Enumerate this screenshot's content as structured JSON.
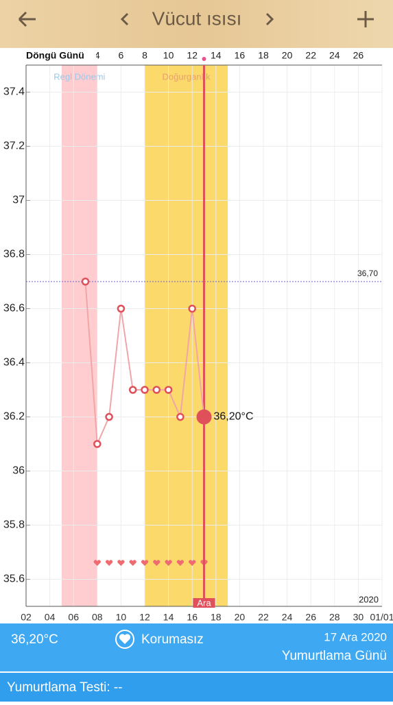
{
  "header": {
    "title": "Vücut ısısı"
  },
  "chart_data": {
    "type": "line",
    "cycle_axis_label": "Döngü Günü",
    "x2ticks": [
      {
        "value": 8,
        "label": "4"
      },
      {
        "value": 10,
        "label": "6"
      },
      {
        "value": 12,
        "label": "8"
      },
      {
        "value": 14,
        "label": "10"
      },
      {
        "value": 16,
        "label": "12"
      },
      {
        "value": 18,
        "label": "14"
      },
      {
        "value": 20,
        "label": "16"
      },
      {
        "value": 22,
        "label": "18"
      },
      {
        "value": 24,
        "label": "20"
      },
      {
        "value": 26,
        "label": "22"
      },
      {
        "value": 28,
        "label": "24"
      },
      {
        "value": 30,
        "label": "26"
      }
    ],
    "xlim": [
      2,
      32
    ],
    "xticks": [
      {
        "value": 2,
        "label": "02"
      },
      {
        "value": 4,
        "label": "04"
      },
      {
        "value": 6,
        "label": "06"
      },
      {
        "value": 8,
        "label": "08"
      },
      {
        "value": 10,
        "label": "10"
      },
      {
        "value": 12,
        "label": "12"
      },
      {
        "value": 14,
        "label": "14"
      },
      {
        "value": 16,
        "label": "16"
      },
      {
        "value": 18,
        "label": "18"
      },
      {
        "value": 20,
        "label": "20"
      },
      {
        "value": 22,
        "label": "22"
      },
      {
        "value": 24,
        "label": "24"
      },
      {
        "value": 26,
        "label": "26"
      },
      {
        "value": 28,
        "label": "28"
      },
      {
        "value": 30,
        "label": "30"
      },
      {
        "value": 32,
        "label": "01/01"
      }
    ],
    "ylim": [
      35.5,
      37.5
    ],
    "yticks": [
      35.6,
      35.8,
      36,
      36.2,
      36.4,
      36.6,
      36.8,
      37,
      37.2,
      37.4
    ],
    "grid": true,
    "year_label": "2020",
    "bands": [
      {
        "name": "Regl Dönemi",
        "start": 5,
        "end": 8,
        "color": "#ffcdd0",
        "text_color": "#9cc8e8"
      },
      {
        "name": "Doğurganlık",
        "start": 12,
        "end": 19,
        "color": "#fbd96a",
        "text_color": "#e8a070"
      }
    ],
    "series": [
      {
        "name": "Vücut ısısı",
        "color": "#f0a6a8",
        "x": [
          7,
          8,
          9,
          10,
          11,
          12,
          13,
          14,
          15,
          16,
          17
        ],
        "values": [
          36.7,
          36.1,
          36.2,
          36.6,
          36.3,
          36.3,
          36.3,
          36.3,
          36.2,
          36.6,
          36.2
        ],
        "value_labels": [
          null,
          null,
          null,
          null,
          null,
          null,
          null,
          null,
          null,
          null,
          "36,20°C"
        ]
      }
    ],
    "cover_line": {
      "value": 36.7,
      "label": "36,70"
    },
    "heart_days": [
      8,
      9,
      10,
      11,
      12,
      13,
      14,
      15,
      16,
      17
    ],
    "today": {
      "value": 17,
      "label": "Ara"
    }
  },
  "footer": {
    "temperature": "36,20°C",
    "status": "Korumasız",
    "date": "17 Ara 2020",
    "day_type": "Yumurtlama Günü",
    "test": "Yumurtlama Testi: --"
  }
}
